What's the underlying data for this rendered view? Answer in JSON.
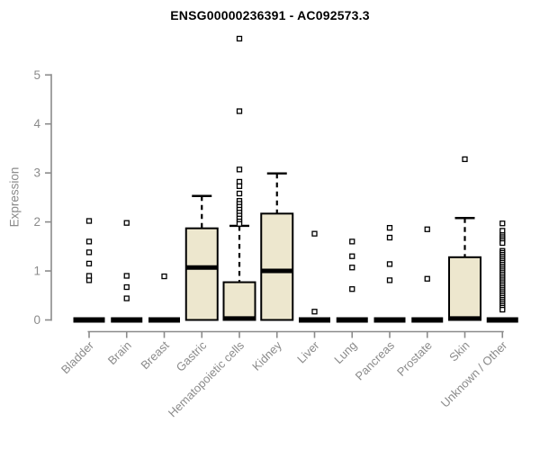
{
  "colors": {
    "box_fill": "#EDE7CE",
    "box_stroke": "#000000",
    "median": "#000000",
    "whisker": "#000000",
    "outlier_fill": "#FFFFFF",
    "outlier_stroke": "#000000",
    "axis": "#8B8B8B",
    "title": "#000000",
    "background": "#FFFFFF"
  },
  "chart_data": {
    "type": "boxplot",
    "title": "ENSG00000236391 - AC092573.3",
    "xlabel": "",
    "ylabel": "Expression",
    "ylim": [
      0,
      5.8
    ],
    "yticks": [
      0,
      1,
      2,
      3,
      4,
      5
    ],
    "grid": false,
    "legend": false,
    "categories": [
      "Bladder",
      "Brain",
      "Breast",
      "Gastric",
      "Hematopoietic cells",
      "Kidney",
      "Liver",
      "Lung",
      "Pancreas",
      "Prostate",
      "Skin",
      "Unknown / Other"
    ],
    "boxes": [
      {
        "category": "Bladder",
        "whisker_low": 0,
        "q1": 0,
        "median": 0,
        "q3": 0,
        "whisker_high": 0,
        "outliers": [
          0.81,
          0.9,
          1.15,
          1.38,
          1.6,
          2.02
        ]
      },
      {
        "category": "Brain",
        "whisker_low": 0,
        "q1": 0,
        "median": 0,
        "q3": 0,
        "whisker_high": 0,
        "outliers": [
          0.44,
          0.67,
          0.9,
          1.98
        ]
      },
      {
        "category": "Breast",
        "whisker_low": 0,
        "q1": 0,
        "median": 0,
        "q3": 0,
        "whisker_high": 0,
        "outliers": [
          0.89
        ]
      },
      {
        "category": "Gastric",
        "whisker_low": 0,
        "q1": 0,
        "median": 1.07,
        "q3": 1.87,
        "whisker_high": 2.53,
        "outliers": []
      },
      {
        "category": "Hematopoietic cells",
        "whisker_low": 0,
        "q1": 0,
        "median": 0.03,
        "q3": 0.77,
        "whisker_high": 1.92,
        "outliers": [
          5.74,
          4.26,
          3.07,
          2.82,
          2.73,
          2.58,
          2.43,
          2.37,
          2.31,
          2.25,
          2.19,
          2.13,
          2.07,
          2.01,
          1.96
        ]
      },
      {
        "category": "Kidney",
        "whisker_low": 0,
        "q1": 0,
        "median": 1.0,
        "q3": 2.17,
        "whisker_high": 2.99,
        "outliers": []
      },
      {
        "category": "Liver",
        "whisker_low": 0,
        "q1": 0,
        "median": 0,
        "q3": 0,
        "whisker_high": 0,
        "outliers": [
          0.17,
          1.76
        ]
      },
      {
        "category": "Lung",
        "whisker_low": 0,
        "q1": 0,
        "median": 0,
        "q3": 0,
        "whisker_high": 0,
        "outliers": [
          0.63,
          1.07,
          1.3,
          1.6
        ]
      },
      {
        "category": "Pancreas",
        "whisker_low": 0,
        "q1": 0,
        "median": 0,
        "q3": 0,
        "whisker_high": 0,
        "outliers": [
          0.81,
          1.14,
          1.68,
          1.88
        ]
      },
      {
        "category": "Prostate",
        "whisker_low": 0,
        "q1": 0,
        "median": 0,
        "q3": 0,
        "whisker_high": 0,
        "outliers": [
          0.84,
          1.85
        ]
      },
      {
        "category": "Skin",
        "whisker_low": 0,
        "q1": 0,
        "median": 0.03,
        "q3": 1.28,
        "whisker_high": 2.08,
        "outliers": [
          3.28
        ]
      },
      {
        "category": "Unknown / Other",
        "whisker_low": 0,
        "q1": 0,
        "median": 0,
        "q3": 0,
        "whisker_high": 0,
        "outliers": [
          1.97,
          1.82,
          1.73,
          1.69,
          1.65,
          1.61,
          1.57,
          1.41,
          1.37,
          1.33,
          1.29,
          1.25,
          1.21,
          1.17,
          1.13,
          1.09,
          1.05,
          1.01,
          0.97,
          0.93,
          0.89,
          0.85,
          0.81,
          0.77,
          0.73,
          0.69,
          0.65,
          0.61,
          0.57,
          0.53,
          0.49,
          0.45,
          0.41,
          0.37,
          0.33,
          0.29,
          0.25,
          0.21
        ]
      }
    ]
  }
}
